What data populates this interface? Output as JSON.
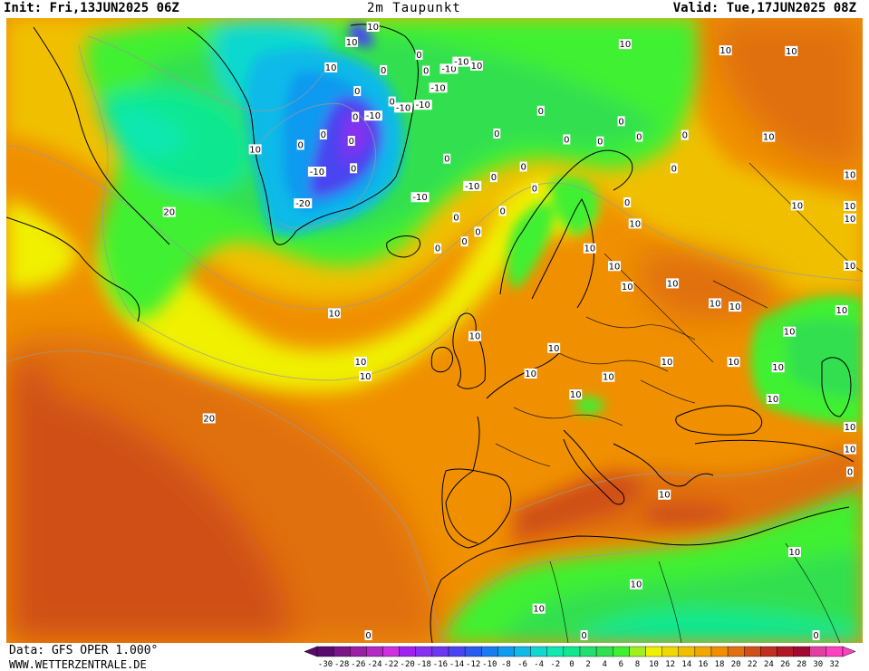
{
  "header": {
    "init": "Init: Fri,13JUN2025 06Z",
    "title": "2m Taupunkt",
    "valid": "Valid: Tue,17JUN2025 08Z"
  },
  "footer": {
    "data_source": "Data: GFS OPER 1.000°",
    "website": "WWW.WETTERZENTRALE.DE"
  },
  "colorbar": {
    "tick_labels": [
      "-30",
      "-28",
      "-26",
      "-24",
      "-22",
      "-20",
      "-18",
      "-16",
      "-14",
      "-12",
      "-10",
      "-8",
      "-6",
      "-4",
      "-2",
      "0",
      "2",
      "4",
      "6",
      "8",
      "10",
      "12",
      "14",
      "16",
      "18",
      "20",
      "22",
      "24",
      "26",
      "28",
      "30",
      "32"
    ],
    "colors": [
      "#5a0a6e",
      "#7a1488",
      "#9a1ea6",
      "#b428c4",
      "#cc30e0",
      "#a020f0",
      "#8830f0",
      "#6a38f0",
      "#4a44f0",
      "#2a5af0",
      "#1a7af0",
      "#109af0",
      "#10bae8",
      "#10d8d0",
      "#10e8b0",
      "#10e890",
      "#20e070",
      "#30e050",
      "#40f030",
      "#a0f020",
      "#f0f000",
      "#f0d800",
      "#f0c000",
      "#f0a800",
      "#f09000",
      "#e07010",
      "#d05018",
      "#c03020",
      "#b01828",
      "#a00830",
      "#e040a0",
      "#ff40c0"
    ],
    "min_arrow_color": "#5a0a6e",
    "max_arrow_color": "#ff40c0"
  },
  "contour_labels": [
    {
      "text": "10",
      "lon": -58,
      "lat": 72
    },
    {
      "text": "10",
      "lon": -57,
      "lat": 69
    },
    {
      "text": "10",
      "lon": -56,
      "lat": 66
    },
    {
      "text": "10",
      "lon": -22,
      "lat": 73
    },
    {
      "text": "-10",
      "lon": -30,
      "lat": 72
    },
    {
      "text": "-10",
      "lon": -27,
      "lat": 73
    },
    {
      "text": "-10",
      "lon": -31,
      "lat": 70
    },
    {
      "text": "-10",
      "lon": -33,
      "lat": 68
    },
    {
      "text": "-10",
      "lon": -37,
      "lat": 67
    },
    {
      "text": "-10",
      "lon": -42,
      "lat": 65
    },
    {
      "text": "-10",
      "lon": -18,
      "lat": 62
    },
    {
      "text": "-10",
      "lon": -27,
      "lat": 60
    },
    {
      "text": "-10",
      "lon": -45,
      "lat": 58
    },
    {
      "text": "-20",
      "lon": -44,
      "lat": 55
    },
    {
      "text": "0",
      "lon": -40,
      "lat": 72
    },
    {
      "text": "0",
      "lon": -36,
      "lat": 71
    },
    {
      "text": "0",
      "lon": -46,
      "lat": 69
    },
    {
      "text": "0",
      "lon": -40,
      "lat": 67
    },
    {
      "text": "0",
      "lon": -48,
      "lat": 66
    },
    {
      "text": "0",
      "lon": -45,
      "lat": 64
    },
    {
      "text": "0",
      "lon": -43,
      "lat": 62
    },
    {
      "text": "0",
      "lon": -48,
      "lat": 61
    },
    {
      "text": "0",
      "lon": -40,
      "lat": 60
    },
    {
      "text": "0",
      "lon": -50,
      "lat": 59
    },
    {
      "text": "0",
      "lon": -20,
      "lat": 59
    },
    {
      "text": "0",
      "lon": -18,
      "lat": 57
    },
    {
      "text": "0",
      "lon": -22,
      "lat": 56
    },
    {
      "text": "0",
      "lon": -24,
      "lat": 64
    },
    {
      "text": "0",
      "lon": -14,
      "lat": 67
    },
    {
      "text": "0",
      "lon": -8,
      "lat": 64
    },
    {
      "text": "0",
      "lon": -14,
      "lat": 63
    },
    {
      "text": "0",
      "lon": -12,
      "lat": 60
    },
    {
      "text": "0",
      "lon": -16,
      "lat": 58
    },
    {
      "text": "0",
      "lon": -6,
      "lat": 62
    },
    {
      "text": "0",
      "lon": -3,
      "lat": 69
    },
    {
      "text": "0",
      "lon": 2,
      "lat": 66
    },
    {
      "text": "0",
      "lon": 9,
      "lat": 65
    },
    {
      "text": "0",
      "lon": 15,
      "lat": 66
    },
    {
      "text": "0",
      "lon": 17,
      "lat": 64
    },
    {
      "text": "0",
      "lon": 25,
      "lat": 62
    },
    {
      "text": "0",
      "lon": 20,
      "lat": 60
    },
    {
      "text": "0",
      "lon": 10,
      "lat": 59
    },
    {
      "text": "10",
      "lon": 26,
      "lat": 72
    },
    {
      "text": "10",
      "lon": 43,
      "lat": 65
    },
    {
      "text": "10",
      "lon": 50,
      "lat": 60
    },
    {
      "text": "10",
      "lon": 36,
      "lat": 57
    },
    {
      "text": "10",
      "lon": 10,
      "lat": 57
    },
    {
      "text": "10",
      "lon": -55,
      "lat": 56
    },
    {
      "text": "10",
      "lon": 2,
      "lat": 56
    },
    {
      "text": "10",
      "lon": 5,
      "lat": 54
    },
    {
      "text": "10",
      "lon": 6,
      "lat": 52
    },
    {
      "text": "10",
      "lon": 12,
      "lat": 51
    },
    {
      "text": "10",
      "lon": -5,
      "lat": 48
    },
    {
      "text": "10",
      "lon": 32,
      "lat": 51
    },
    {
      "text": "10",
      "lon": 16,
      "lat": 48
    },
    {
      "text": "10",
      "lon": 38,
      "lat": 47
    },
    {
      "text": "10",
      "lon": 18,
      "lat": 47
    },
    {
      "text": "10",
      "lon": -15,
      "lat": 49
    },
    {
      "text": "10",
      "lon": -8,
      "lat": 46
    },
    {
      "text": "10",
      "lon": 8,
      "lat": 45
    },
    {
      "text": "10",
      "lon": 1,
      "lat": 45
    },
    {
      "text": "10",
      "lon": -3,
      "lat": 44
    },
    {
      "text": "10",
      "lon": 44,
      "lat": 46
    },
    {
      "text": "10",
      "lon": 15,
      "lat": 43
    },
    {
      "text": "10",
      "lon": 22,
      "lat": 43
    },
    {
      "text": "10",
      "lon": 28,
      "lat": 42
    },
    {
      "text": "10",
      "lon": 19,
      "lat": 41
    },
    {
      "text": "10",
      "lon": 42,
      "lat": 42
    },
    {
      "text": "10",
      "lon": 40,
      "lat": 38
    },
    {
      "text": "10",
      "lon": 17,
      "lat": 39
    },
    {
      "text": "10",
      "lon": -33,
      "lat": 48
    },
    {
      "text": "10",
      "lon": -28,
      "lat": 45
    },
    {
      "text": "10",
      "lon": -27,
      "lat": 44
    },
    {
      "text": "20",
      "lon": -57,
      "lat": 47
    },
    {
      "text": "20",
      "lon": -40,
      "lat": 36
    },
    {
      "text": "10",
      "lon": 4,
      "lat": 35
    },
    {
      "text": "10",
      "lon": 26,
      "lat": 32
    },
    {
      "text": "10",
      "lon": 26,
      "lat": 30
    },
    {
      "text": "10",
      "lon": 13,
      "lat": 28
    },
    {
      "text": "10",
      "lon": 0,
      "lat": 29
    },
    {
      "text": "10",
      "lon": -8,
      "lat": 28
    },
    {
      "text": "0",
      "lon": -5,
      "lat": 22
    },
    {
      "text": "0",
      "lon": 12,
      "lat": 22
    },
    {
      "text": "0",
      "lon": 35,
      "lat": 21
    },
    {
      "text": "0",
      "lon": -20,
      "lat": 20
    }
  ]
}
